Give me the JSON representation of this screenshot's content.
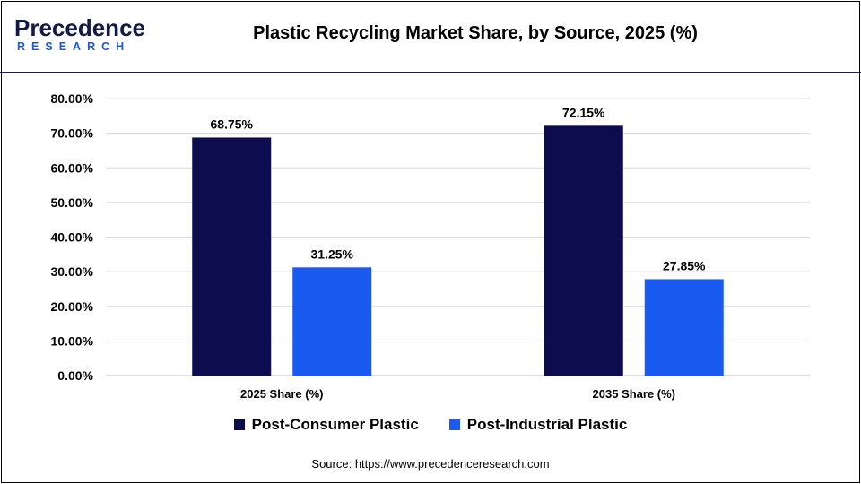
{
  "header": {
    "logo_top": "Precedence",
    "logo_bottom": "RESEARCH",
    "title": "Plastic Recycling Market Share, by Source, 2025 (%)"
  },
  "source": "Source: https://www.precedenceresearch.com",
  "colors": {
    "post_consumer": "#0c0c4e",
    "post_industrial": "#1a5af0",
    "grid": "#d9d9d9",
    "brand_dark": "#101a4a",
    "brand_blue": "#1a5adb"
  },
  "chart_data": {
    "type": "bar",
    "title": "Plastic Recycling Market Share, by Source, 2025 (%)",
    "categories": [
      "2025 Share (%)",
      "2035 Share (%)"
    ],
    "series": [
      {
        "name": "Post-Consumer Plastic",
        "values": [
          68.75,
          72.15
        ],
        "labels": [
          "68.75%",
          "72.15%"
        ]
      },
      {
        "name": "Post-Industrial Plastic",
        "values": [
          31.25,
          27.85
        ],
        "labels": [
          "31.25%",
          "27.85%"
        ]
      }
    ],
    "yticks": [
      "0.00%",
      "10.00%",
      "20.00%",
      "30.00%",
      "40.00%",
      "50.00%",
      "60.00%",
      "70.00%",
      "80.00%"
    ],
    "ylim": [
      0,
      80
    ],
    "xlabel": "",
    "ylabel": "",
    "grid": true,
    "legend_position": "bottom"
  }
}
